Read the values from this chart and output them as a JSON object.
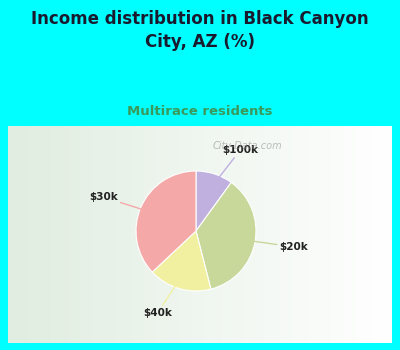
{
  "title": "Income distribution in Black Canyon\nCity, AZ (%)",
  "subtitle": "Multirace residents",
  "title_color": "#1a1a2e",
  "subtitle_color": "#3a9a5c",
  "background_color": "#00ffff",
  "chart_bg_color": "#e8f5e9",
  "slices": [
    {
      "label": "$100k",
      "value": 10,
      "color": "#c0b0e0"
    },
    {
      "label": "$20k",
      "value": 36,
      "color": "#c8d89a"
    },
    {
      "label": "$40k",
      "value": 17,
      "color": "#f0f0a0"
    },
    {
      "label": "$30k",
      "value": 37,
      "color": "#f4a8a8"
    }
  ],
  "startangle": 90,
  "watermark": "City-Data.com"
}
